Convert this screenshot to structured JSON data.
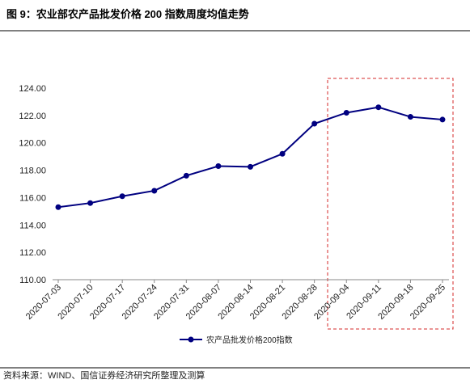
{
  "chart_data": {
    "type": "line",
    "title": "图 9：农业部农产品批发价格 200 指数周度均值走势",
    "source": "资料来源：WIND、国信证券经济研究所整理及测算",
    "categories": [
      "2020-07-03",
      "2020-07-10",
      "2020-07-17",
      "2020-07-24",
      "2020-07-31",
      "2020-08-07",
      "2020-08-14",
      "2020-08-21",
      "2020-08-28",
      "2020-09-04",
      "2020-09-11",
      "2020-09-18",
      "2020-09-25"
    ],
    "series": [
      {
        "name": "农产品批发价格200指数",
        "color": "#000080",
        "values": [
          115.3,
          115.6,
          116.1,
          116.5,
          117.6,
          118.3,
          118.25,
          119.2,
          121.4,
          122.2,
          122.6,
          121.9,
          121.7
        ]
      }
    ],
    "ylim": [
      110,
      124
    ],
    "yticks": [
      {
        "value": 110,
        "label": "110.00"
      },
      {
        "value": 112,
        "label": "112.00"
      },
      {
        "value": 114,
        "label": "114.00"
      },
      {
        "value": 116,
        "label": "116.00"
      },
      {
        "value": 118,
        "label": "118.00"
      },
      {
        "value": 120,
        "label": "120.00"
      },
      {
        "value": 122,
        "label": "122.00"
      },
      {
        "value": 124,
        "label": "124.00"
      }
    ],
    "grid": false
  }
}
